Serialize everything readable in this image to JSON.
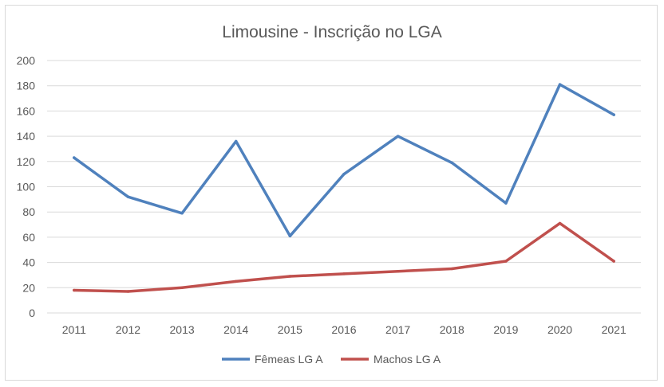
{
  "chart_data": {
    "type": "line",
    "title": "Limousine - Inscrição no LGA",
    "xlabel": "",
    "ylabel": "",
    "categories": [
      "2011",
      "2012",
      "2013",
      "2014",
      "2015",
      "2016",
      "2017",
      "2018",
      "2019",
      "2020",
      "2021"
    ],
    "ylim": [
      0,
      200
    ],
    "yticks": [
      0,
      20,
      40,
      60,
      80,
      100,
      120,
      140,
      160,
      180,
      200
    ],
    "grid": true,
    "legend_position": "bottom",
    "series": [
      {
        "name": "Fêmeas LG A",
        "color": "#4f81bd",
        "values": [
          123,
          92,
          79,
          136,
          61,
          110,
          140,
          119,
          87,
          181,
          157
        ]
      },
      {
        "name": "Machos LG A",
        "color": "#c0504d",
        "values": [
          18,
          17,
          20,
          25,
          29,
          31,
          33,
          35,
          41,
          71,
          41
        ]
      }
    ]
  }
}
